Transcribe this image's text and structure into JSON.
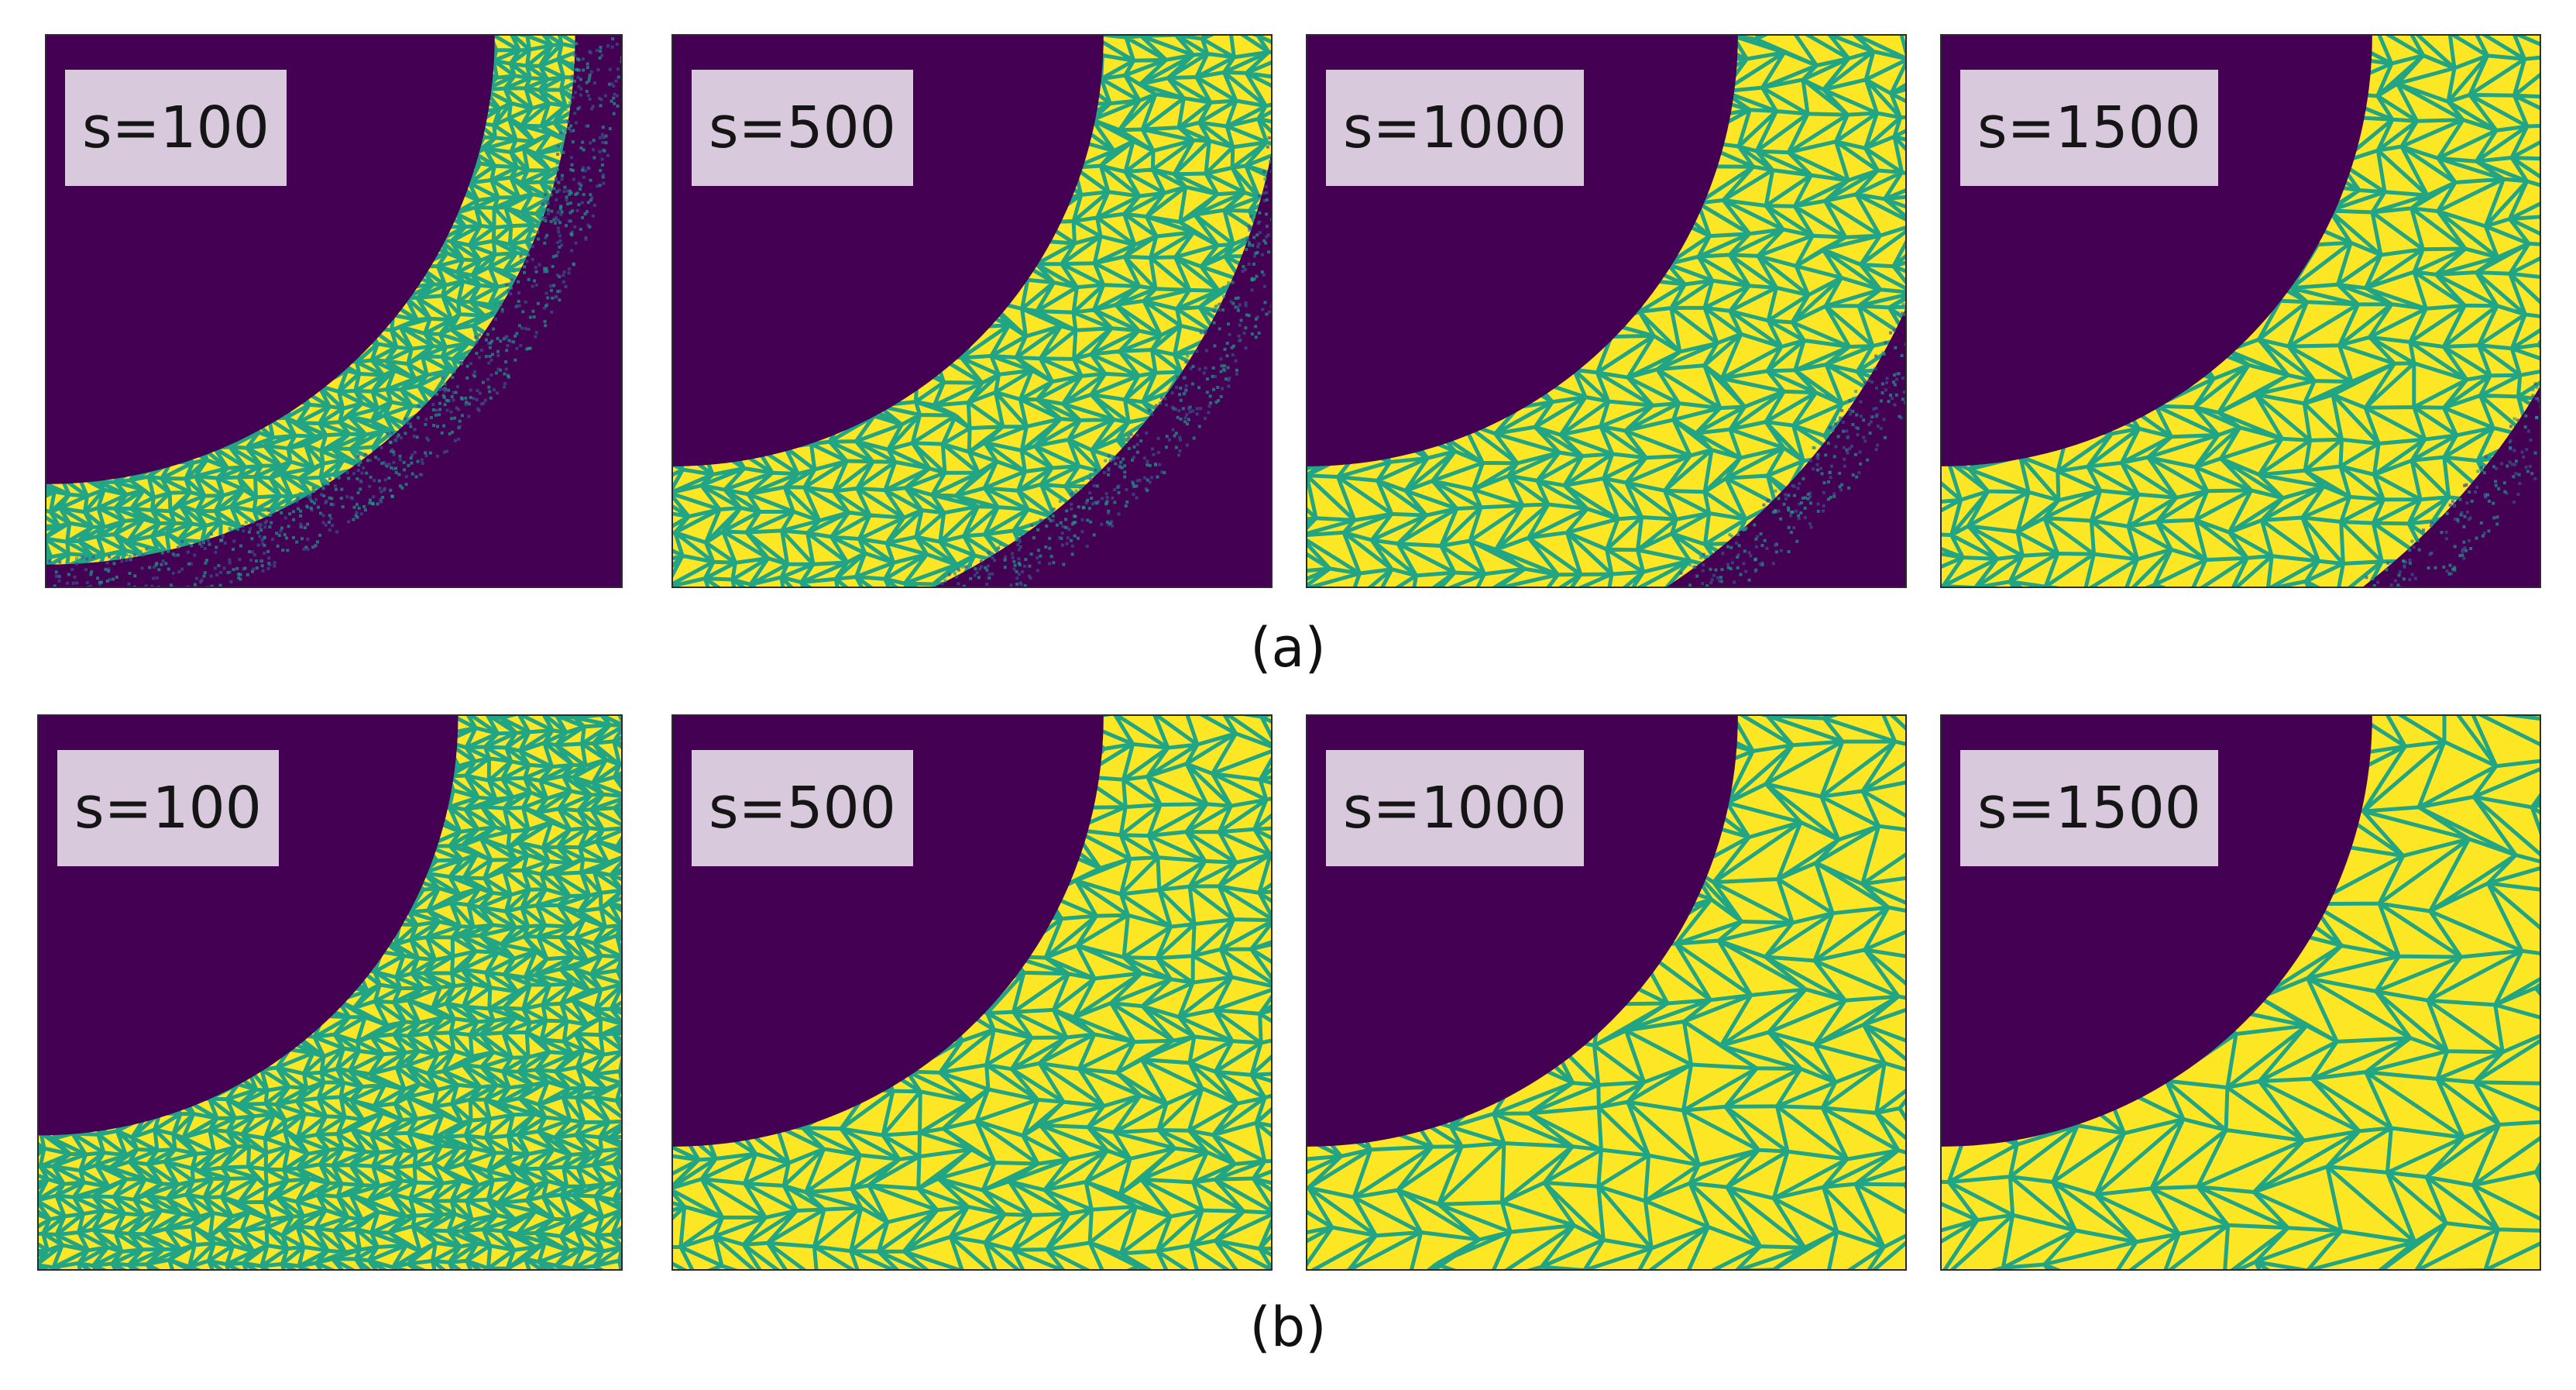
{
  "figure": {
    "rows": [
      {
        "caption": "(a)",
        "labels": [
          "s=100",
          "s=500",
          "s=1000",
          "s=1500"
        ]
      },
      {
        "caption": "(b)",
        "labels": [
          "s=100",
          "s=500",
          "s=1000",
          "s=1500"
        ]
      }
    ]
  },
  "colors": {
    "void": "#440154",
    "grain": "#fde725",
    "boundary": "#21a585",
    "diffuse": "#1f9a8a"
  }
}
